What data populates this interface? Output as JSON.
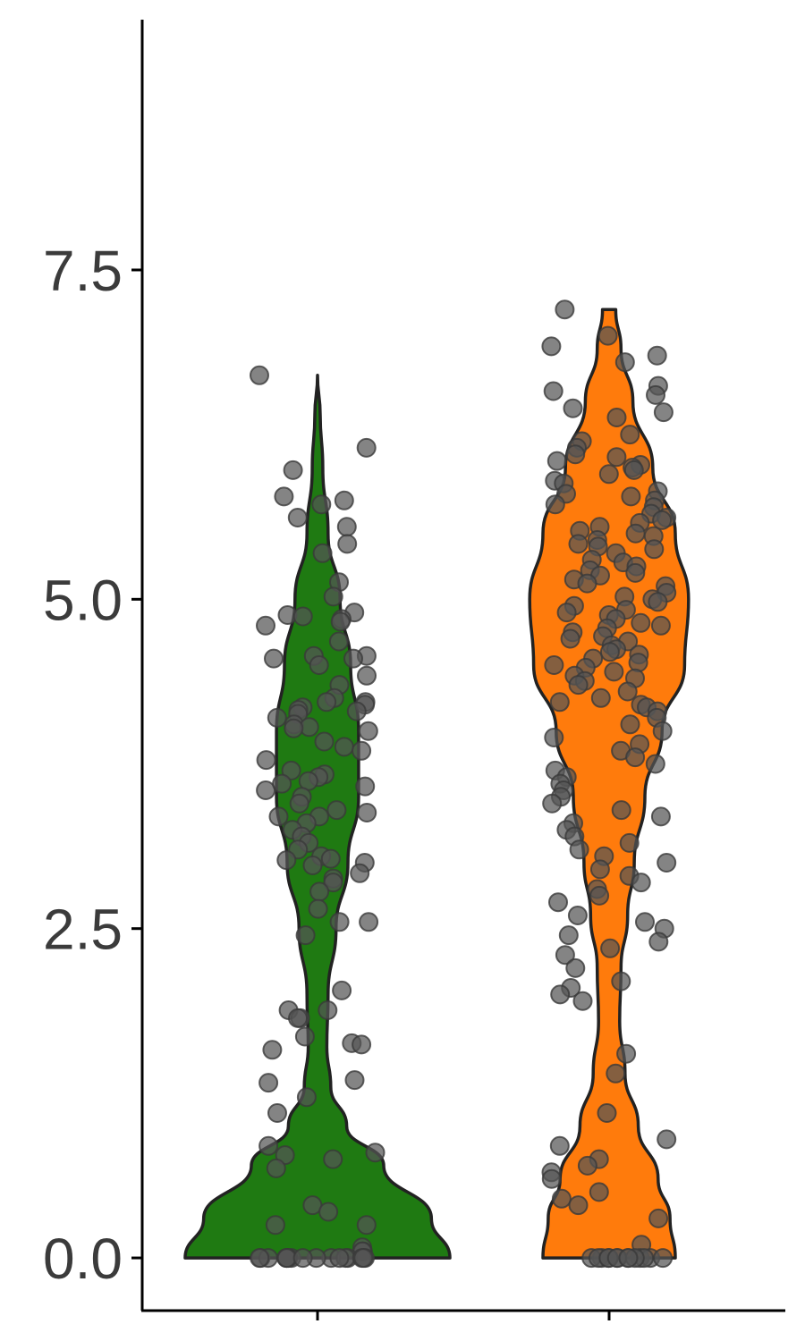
{
  "chart_data": {
    "type": "violin",
    "ylim": [
      -0.4,
      9.4
    ],
    "yticks": [
      {
        "value": 0,
        "label": "0.0"
      },
      {
        "value": 2.5,
        "label": "2.5"
      },
      {
        "value": 5,
        "label": "5.0"
      },
      {
        "value": 7.5,
        "label": "7.5"
      }
    ],
    "xlabel": "",
    "ylabel": "",
    "legend": "none",
    "point_color": "#555555",
    "series": [
      {
        "color": "#1f7a12",
        "profile": [
          [
            0,
            1.0
          ],
          [
            0.3,
            0.86
          ],
          [
            0.7,
            0.5
          ],
          [
            1.0,
            0.22
          ],
          [
            1.3,
            0.1
          ],
          [
            1.6,
            0.07
          ],
          [
            2.0,
            0.08
          ],
          [
            2.5,
            0.14
          ],
          [
            3.0,
            0.23
          ],
          [
            3.5,
            0.31
          ],
          [
            4.0,
            0.31
          ],
          [
            4.5,
            0.25
          ],
          [
            5.0,
            0.17
          ],
          [
            5.5,
            0.08
          ],
          [
            6.0,
            0.04
          ],
          [
            6.4,
            0.02
          ],
          [
            6.7,
            0
          ]
        ],
        "points": [
          6.7,
          6.15,
          5.98,
          5.78,
          5.75,
          5.72,
          5.62,
          5.55,
          5.42,
          5.35,
          5.13,
          5.02,
          4.9,
          4.88,
          4.87,
          4.85,
          4.83,
          4.8,
          4.68,
          4.57,
          4.57,
          4.55,
          4.55,
          4.5,
          4.42,
          4.35,
          4.25,
          4.22,
          4.22,
          4.2,
          4.18,
          4.16,
          4.15,
          4.13,
          4.1,
          4.05,
          4.03,
          4.02,
          4.0,
          3.92,
          3.88,
          3.85,
          3.78,
          3.7,
          3.67,
          3.65,
          3.62,
          3.6,
          3.58,
          3.55,
          3.5,
          3.45,
          3.4,
          3.38,
          3.35,
          3.35,
          3.3,
          3.25,
          3.2,
          3.15,
          3.1,
          3.05,
          3.03,
          3.02,
          3.0,
          2.98,
          2.92,
          2.88,
          2.85,
          2.78,
          2.65,
          2.55,
          2.55,
          2.45,
          2.03,
          1.88,
          1.88,
          1.82,
          1.82,
          1.68,
          1.63,
          1.62,
          1.58,
          1.35,
          1.33,
          1.22,
          1.1,
          0.85,
          0.8,
          0.78,
          0.75,
          0.68,
          0.4,
          0.35,
          0.25,
          0.25,
          0.08,
          0.05,
          0.05,
          0,
          0,
          0,
          0,
          0,
          0,
          0,
          0,
          0,
          0,
          0,
          0,
          0,
          0,
          0,
          0,
          0
        ]
      },
      {
        "color": "#ff7b0c",
        "profile": [
          [
            0,
            0.5
          ],
          [
            0.3,
            0.46
          ],
          [
            0.6,
            0.37
          ],
          [
            1.0,
            0.22
          ],
          [
            1.4,
            0.12
          ],
          [
            1.8,
            0.08
          ],
          [
            2.2,
            0.09
          ],
          [
            2.6,
            0.14
          ],
          [
            3.0,
            0.19
          ],
          [
            3.5,
            0.27
          ],
          [
            4.0,
            0.4
          ],
          [
            4.5,
            0.57
          ],
          [
            5.0,
            0.6
          ],
          [
            5.5,
            0.5
          ],
          [
            6.0,
            0.33
          ],
          [
            6.5,
            0.18
          ],
          [
            6.9,
            0.09
          ],
          [
            7.2,
            0.05
          ]
        ],
        "points": [
          7.2,
          7.0,
          6.92,
          6.85,
          6.8,
          6.62,
          6.58,
          6.55,
          6.45,
          6.42,
          6.38,
          6.25,
          6.2,
          6.15,
          6.1,
          6.08,
          6.05,
          6.02,
          6.0,
          5.98,
          5.95,
          5.9,
          5.88,
          5.82,
          5.8,
          5.78,
          5.75,
          5.72,
          5.7,
          5.65,
          5.62,
          5.6,
          5.58,
          5.55,
          5.52,
          5.5,
          5.48,
          5.45,
          5.42,
          5.4,
          5.38,
          5.35,
          5.3,
          5.28,
          5.25,
          5.22,
          5.2,
          5.18,
          5.15,
          5.12,
          5.1,
          5.05,
          5.02,
          5.0,
          4.98,
          4.95,
          4.92,
          4.9,
          4.88,
          4.85,
          4.82,
          4.8,
          4.78,
          4.75,
          4.72,
          4.7,
          4.68,
          4.65,
          4.62,
          4.6,
          4.58,
          4.55,
          4.52,
          4.5,
          4.48,
          4.45,
          4.42,
          4.4,
          4.38,
          4.35,
          4.3,
          4.25,
          4.22,
          4.2,
          4.18,
          4.15,
          4.1,
          4.05,
          4.0,
          3.95,
          3.9,
          3.85,
          3.8,
          3.75,
          3.7,
          3.65,
          3.6,
          3.55,
          3.5,
          3.45,
          3.4,
          3.35,
          3.3,
          3.25,
          3.2,
          3.15,
          3.1,
          3.05,
          3.0,
          2.95,
          2.9,
          2.85,
          2.8,
          2.75,
          2.7,
          2.6,
          2.55,
          2.5,
          2.45,
          2.4,
          2.35,
          2.3,
          2.2,
          2.1,
          2.05,
          2.0,
          1.95,
          1.55,
          1.4,
          1.1,
          0.9,
          0.85,
          0.75,
          0.7,
          0.65,
          0.6,
          0.5,
          0.45,
          0.4,
          0.3,
          0.1,
          0,
          0,
          0,
          0,
          0,
          0,
          0,
          0,
          0,
          0,
          0,
          0,
          0,
          0
        ]
      }
    ]
  }
}
